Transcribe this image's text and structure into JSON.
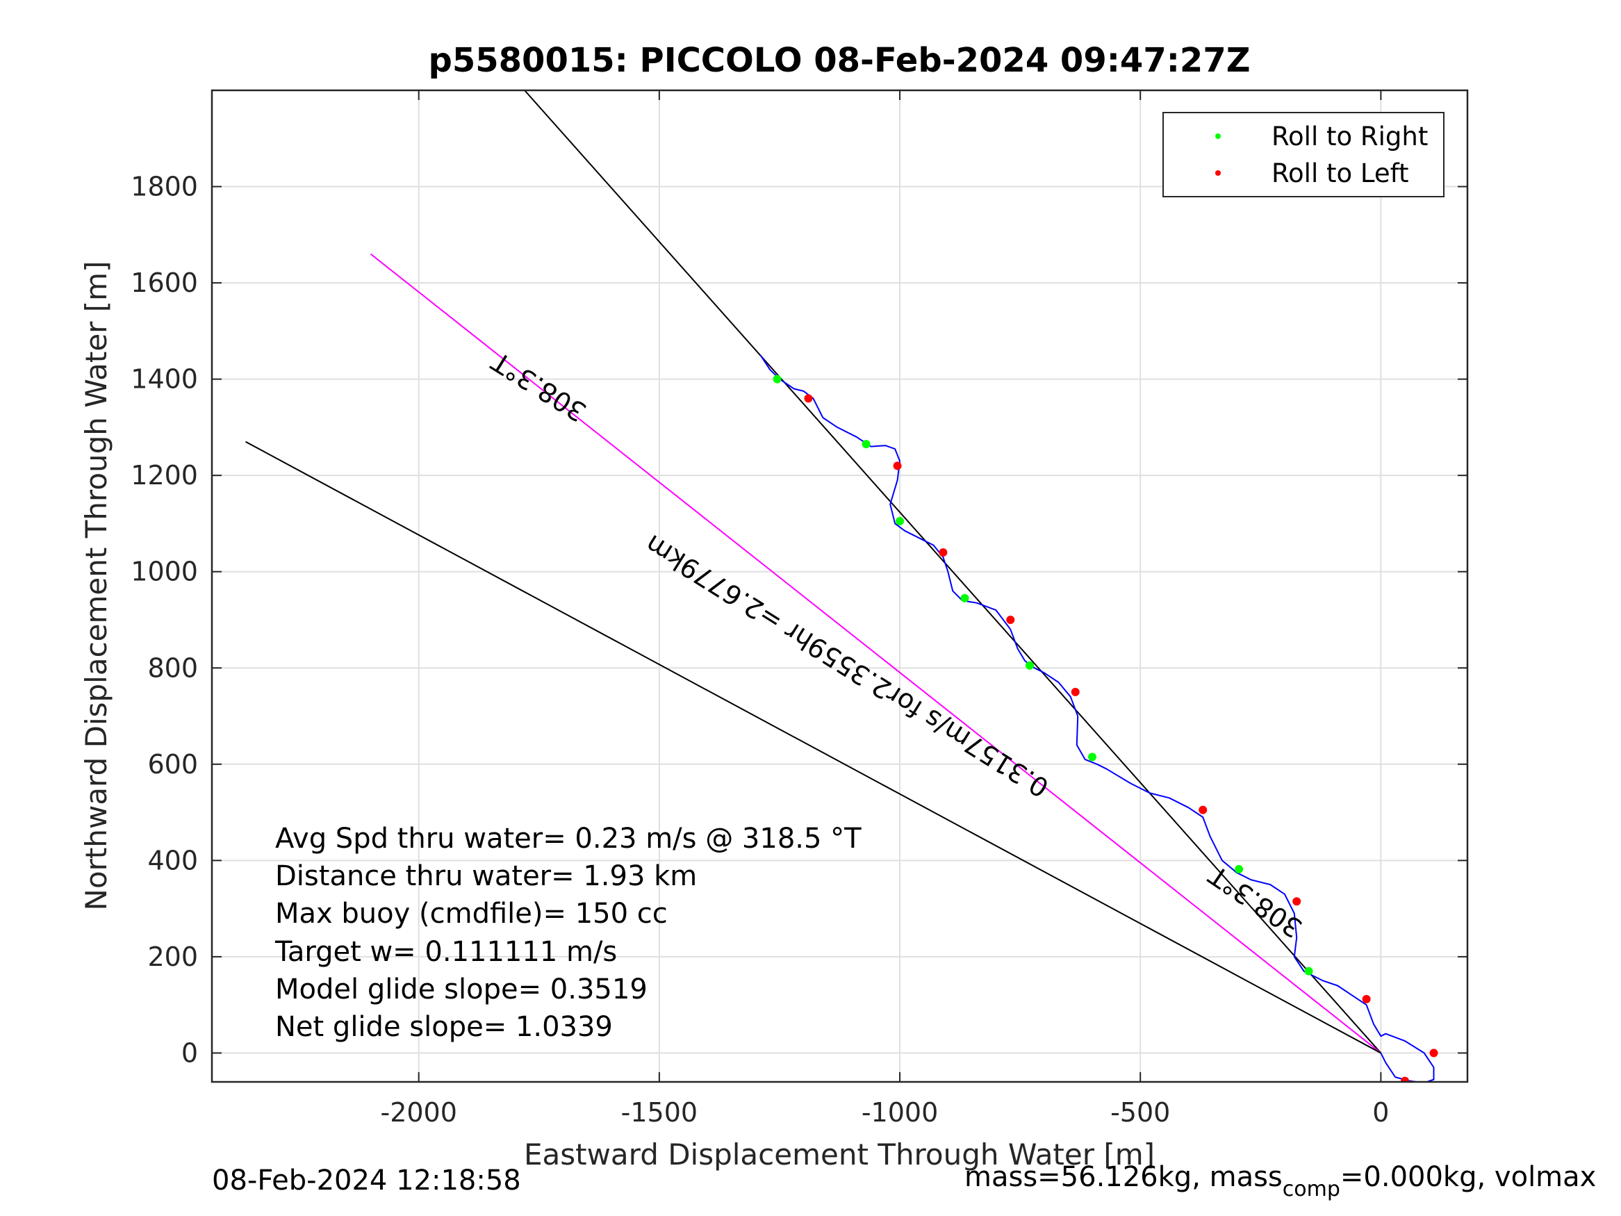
{
  "chart_data": {
    "type": "scatter",
    "title": "p5580015: PICCOLO 08-Feb-2024 09:47:27Z",
    "xlabel": "Eastward Displacement Through Water [m]",
    "ylabel": "Northward Displacement Through Water [m]",
    "xlim": [
      -2430,
      180
    ],
    "ylim": [
      -60,
      2000
    ],
    "xticks": [
      -2000,
      -1500,
      -1000,
      -500,
      0
    ],
    "xtick_labels": [
      "-2000",
      "-1500",
      "-1000",
      "-500",
      "0"
    ],
    "yticks": [
      0,
      200,
      400,
      600,
      800,
      1000,
      1200,
      1400,
      1600,
      1800
    ],
    "ytick_labels": [
      "0",
      "200",
      "400",
      "600",
      "800",
      "1000",
      "1200",
      "1400",
      "1600",
      "1800"
    ],
    "grid": true,
    "legend": {
      "placement": "top-right",
      "entries": [
        {
          "label": "Roll to Right",
          "color": "#00ff00"
        },
        {
          "label": "Roll to Left",
          "color": "#ff0000"
        }
      ]
    },
    "lines": [
      {
        "name": "heading-line-upper",
        "color": "#000000",
        "x": [
          0,
          -1780
        ],
        "y": [
          0,
          2000
        ]
      },
      {
        "name": "heading-line-308",
        "color": "#ff00ff",
        "x": [
          0,
          -2100
        ],
        "y": [
          0,
          1660
        ]
      },
      {
        "name": "current-line",
        "color": "#000000",
        "x": [
          0,
          -2360
        ],
        "y": [
          0,
          1270
        ]
      }
    ],
    "track": {
      "color": "#0000ff",
      "x": [
        -1290,
        -1270,
        -1250,
        -1220,
        -1200,
        -1180,
        -1160,
        -1130,
        -1090,
        -1060,
        -1030,
        -1010,
        -1000,
        -1005,
        -1020,
        -1010,
        -990,
        -960,
        -930,
        -910,
        -900,
        -890,
        -870,
        -840,
        -800,
        -770,
        -755,
        -740,
        -720,
        -700,
        -670,
        -645,
        -630,
        -632,
        -615,
        -590,
        -570,
        -520,
        -480,
        -440,
        -400,
        -370,
        -355,
        -330,
        -300,
        -270,
        -230,
        -200,
        -180,
        -175,
        -180,
        -160,
        -120,
        -90,
        -60,
        -30,
        -15,
        0,
        10,
        50,
        90,
        110,
        110,
        90,
        60,
        30,
        10,
        0
      ],
      "y": [
        1450,
        1420,
        1400,
        1380,
        1375,
        1360,
        1320,
        1300,
        1280,
        1260,
        1262,
        1255,
        1230,
        1190,
        1140,
        1100,
        1085,
        1070,
        1055,
        1030,
        1000,
        960,
        940,
        935,
        920,
        880,
        840,
        815,
        800,
        790,
        770,
        740,
        700,
        640,
        610,
        600,
        590,
        560,
        540,
        530,
        510,
        490,
        450,
        400,
        375,
        360,
        350,
        330,
        290,
        240,
        200,
        170,
        150,
        140,
        120,
        100,
        60,
        35,
        40,
        25,
        0,
        -30,
        -55,
        -62,
        -58,
        -50,
        -20,
        0
      ]
    },
    "roll_right": [
      {
        "x": -1255,
        "y": 1400
      },
      {
        "x": -1070,
        "y": 1265
      },
      {
        "x": -1000,
        "y": 1105
      },
      {
        "x": -865,
        "y": 945
      },
      {
        "x": -730,
        "y": 805
      },
      {
        "x": -600,
        "y": 615
      },
      {
        "x": -295,
        "y": 382
      },
      {
        "x": -150,
        "y": 170
      }
    ],
    "roll_left": [
      {
        "x": -1190,
        "y": 1360
      },
      {
        "x": -1005,
        "y": 1220
      },
      {
        "x": -910,
        "y": 1040
      },
      {
        "x": -770,
        "y": 900
      },
      {
        "x": -635,
        "y": 750
      },
      {
        "x": -370,
        "y": 505
      },
      {
        "x": -175,
        "y": 315
      },
      {
        "x": -30,
        "y": 112
      },
      {
        "x": 50,
        "y": -58
      },
      {
        "x": 110,
        "y": 0
      }
    ],
    "annotations": [
      {
        "text": "308.3°T",
        "x": -1740,
        "y": 1400,
        "rotation_deg": 212
      },
      {
        "text": "308.3°T",
        "x": -250,
        "y": 330,
        "rotation_deg": 214
      },
      {
        "text": "0.3157m/s for2.3559hr =2.6779km",
        "x": -1100,
        "y": 820,
        "rotation_deg": 212
      }
    ]
  },
  "stats": {
    "line1": "Avg Spd thru water=  0.23 m/s @ 318.5 °T",
    "line2": "Distance thru water=  1.93 km",
    "line3": "Max buoy (cmdfile)= 150 cc",
    "line4": "Target w= 0.111111 m/s",
    "line5": "Model glide slope= 0.3519",
    "line6": "Net glide slope= 1.0339"
  },
  "footer": {
    "timestamp": "08-Feb-2024 12:18:58",
    "mass_text": "mass=56.126kg, mass",
    "mass_sub": "comp",
    "mass_rest": "=0.000kg, volmax"
  }
}
